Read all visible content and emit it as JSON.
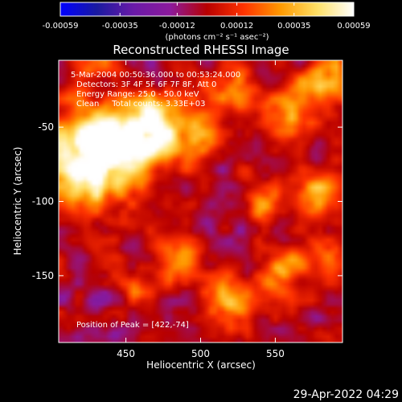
{
  "chart_data": {
    "type": "heatmap",
    "title": "Reconstructed RHESSI Image",
    "xlabel": "Heliocentric X (arcsec)",
    "ylabel": "Heliocentric Y (arcsec)",
    "xlim": [
      405,
      595
    ],
    "ylim": [
      -195,
      -5
    ],
    "x_ticks": [
      450,
      500,
      550
    ],
    "y_ticks": [
      -50,
      -100,
      -150
    ],
    "colorbar": {
      "range": [
        -0.00059,
        0.00059
      ],
      "ticks": [
        -0.00059,
        -0.00035,
        -0.00012,
        0.00012,
        0.00035,
        0.00059
      ],
      "tick_labels": [
        "-0.00059",
        "-0.00035",
        "-0.00012",
        "0.00012",
        "0.00035",
        "0.00059"
      ],
      "unit_label": "(photons cm⁻² s⁻¹ asec⁻²)",
      "colors": [
        "#0000ff",
        "#1a1aa0",
        "#6a1aa8",
        "#8c1a9c",
        "#b80000",
        "#ff3300",
        "#ff9900",
        "#ffe066",
        "#ffffff"
      ]
    },
    "annotations": {
      "time": "5-Mar-2004 00:50:36.000 to 00:53:24.000",
      "detectors": "Detectors: 3F 4F 5F 6F 7F 8F, Att 0",
      "energy": "Energy Range: 25.0 - 50.0 keV",
      "clean": "Clean     Total counts: 3.33E+03",
      "peak": "Position of Peak = [422,-74]"
    },
    "peak": [
      422,
      -74
    ],
    "sources": [
      {
        "x": 422,
        "y": -74,
        "radius": 24,
        "value": 0.00059
      },
      {
        "x": 445,
        "y": -62,
        "radius": 18,
        "value": 0.00048
      },
      {
        "x": 470,
        "y": -48,
        "radius": 15,
        "value": 0.00042
      },
      {
        "x": 500,
        "y": -55,
        "radius": 12,
        "value": 0.00036
      },
      {
        "x": 520,
        "y": -25,
        "radius": 11,
        "value": 0.00038
      },
      {
        "x": 560,
        "y": -40,
        "radius": 12,
        "value": 0.0004
      },
      {
        "x": 585,
        "y": -20,
        "radius": 12,
        "value": 0.0004
      },
      {
        "x": 580,
        "y": -95,
        "radius": 13,
        "value": 0.00036
      },
      {
        "x": 540,
        "y": -100,
        "radius": 10,
        "value": 0.0003
      },
      {
        "x": 488,
        "y": -140,
        "radius": 12,
        "value": 0.00034
      },
      {
        "x": 520,
        "y": -165,
        "radius": 12,
        "value": 0.00038
      },
      {
        "x": 555,
        "y": -150,
        "radius": 11,
        "value": 0.00034
      },
      {
        "x": 580,
        "y": -135,
        "radius": 11,
        "value": 0.0003
      },
      {
        "x": 460,
        "y": -160,
        "radius": 9,
        "value": 0.00026
      },
      {
        "x": 430,
        "y": -5,
        "radius": 11,
        "value": 0.0003
      }
    ]
  },
  "footer": {
    "timestamp": "29-Apr-2022 04:29"
  }
}
